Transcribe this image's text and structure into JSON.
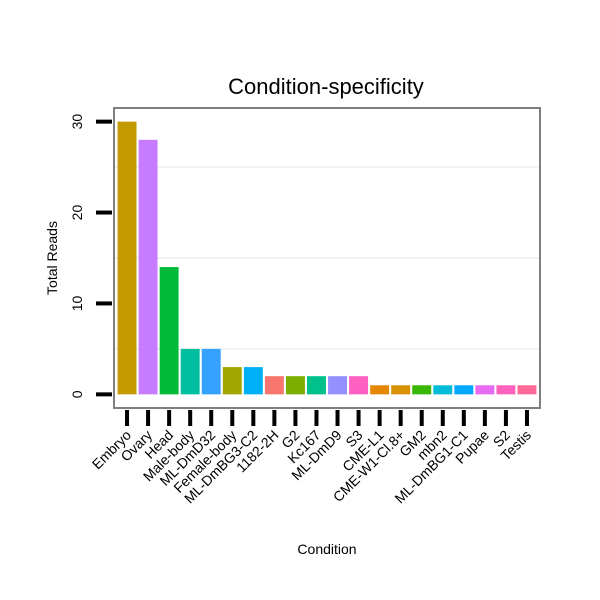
{
  "chart_data": {
    "type": "bar",
    "title": "Condition-specificity",
    "xlabel": "Condition",
    "ylabel": "Total Reads",
    "ylim": [
      -1.5,
      31.5
    ],
    "yticks": [
      0,
      10,
      20,
      30
    ],
    "grid": true,
    "categories": [
      "Embryo",
      "Ovary",
      "Head",
      "Male-body",
      "ML-DmD32",
      "Female-body",
      "ML-DmBG3-C2",
      "1182-2H",
      "G2",
      "Kc167",
      "ML-DmD9",
      "S3",
      "CME-L1",
      "CME-W1-Cl.8+",
      "GM2",
      "mbn2",
      "ML-DmBG1-C1",
      "Pupae",
      "S2",
      "Testis"
    ],
    "values": [
      30,
      28,
      14,
      5,
      5,
      3,
      3,
      2,
      2,
      2,
      2,
      2,
      1,
      1,
      1,
      1,
      1,
      1,
      1,
      1
    ],
    "colors": [
      "#C49A00",
      "#C77CFF",
      "#00BA38",
      "#00BFA0",
      "#35A2FF",
      "#A3A500",
      "#00B0F6",
      "#F8766D",
      "#7CAE00",
      "#00C08B",
      "#9590FF",
      "#FF61C3",
      "#E58700",
      "#D89000",
      "#39B600",
      "#00BCD8",
      "#00A9FF",
      "#E76BF3",
      "#FF62BC",
      "#FF6A98"
    ]
  }
}
